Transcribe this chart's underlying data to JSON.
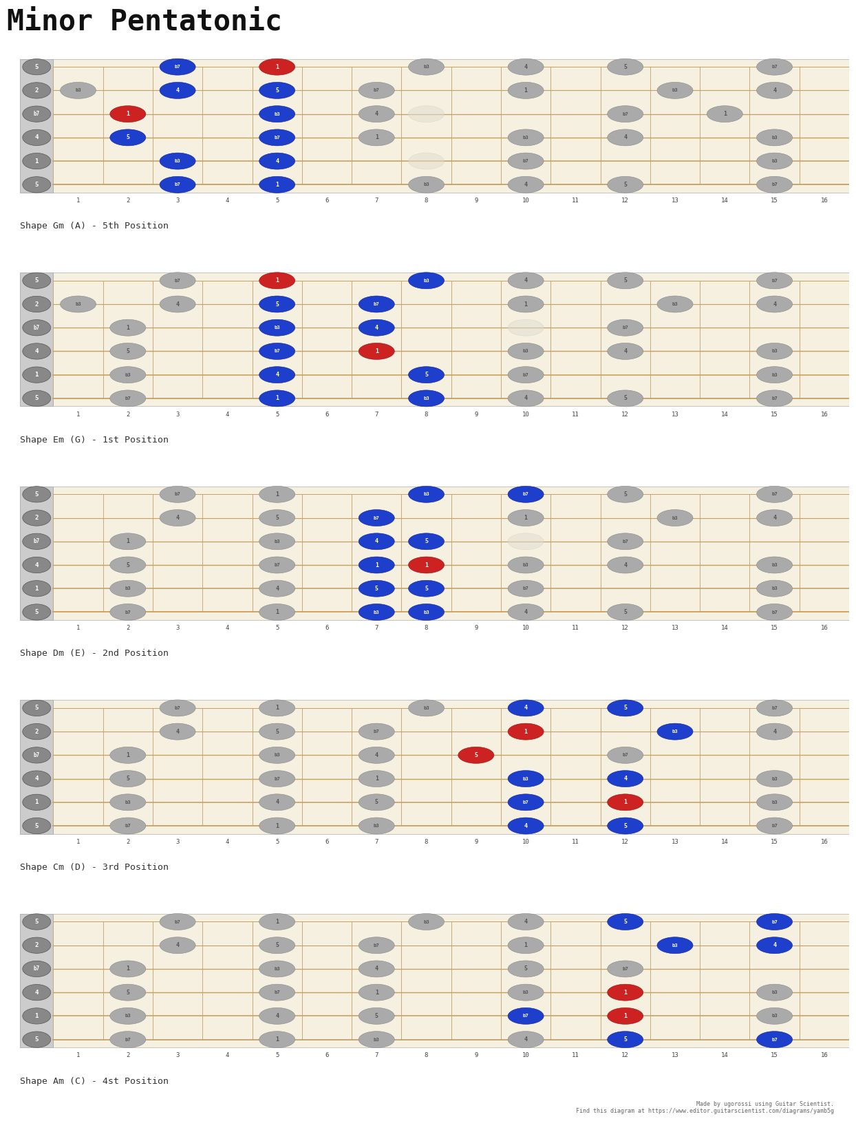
{
  "title": "Minor Pentatonic",
  "page_bg": "#ffffff",
  "fretboard_bg": "#f5f0e0",
  "fret_color": "#c8a878",
  "string_color": "#c8a060",
  "string_label_bg": "#888888",
  "num_frets": 16,
  "num_strings": 6,
  "string_labels": [
    "5",
    "2",
    "b7",
    "4",
    "1",
    "5"
  ],
  "footer": "Made by ugorossi using Guitar Scientist.\nFind this diagram at https://www.editor.guitarscientist.com/diagrams/yamb5g",
  "shapes": [
    {
      "label": "Shape Gm (A) - 5th Position",
      "dots": [
        [
          0,
          3,
          "b7",
          "blue"
        ],
        [
          0,
          5,
          "1",
          "red"
        ],
        [
          0,
          8,
          "b3",
          "gray"
        ],
        [
          0,
          10,
          "4",
          "gray"
        ],
        [
          0,
          12,
          "5",
          "gray"
        ],
        [
          0,
          15,
          "b7",
          "gray"
        ],
        [
          1,
          1,
          "b3",
          "gray"
        ],
        [
          1,
          3,
          "4",
          "blue"
        ],
        [
          1,
          5,
          "5",
          "blue"
        ],
        [
          1,
          7,
          "b7",
          "gray"
        ],
        [
          1,
          10,
          "1",
          "gray"
        ],
        [
          1,
          13,
          "b3",
          "gray"
        ],
        [
          1,
          15,
          "4",
          "gray"
        ],
        [
          2,
          2,
          "1",
          "red"
        ],
        [
          2,
          5,
          "b3",
          "blue"
        ],
        [
          2,
          7,
          "4",
          "gray"
        ],
        [
          2,
          8,
          "5",
          "ghost"
        ],
        [
          2,
          12,
          "b7",
          "gray"
        ],
        [
          2,
          14,
          "1",
          "gray"
        ],
        [
          3,
          2,
          "5",
          "blue"
        ],
        [
          3,
          5,
          "b7",
          "blue"
        ],
        [
          3,
          7,
          "1",
          "gray"
        ],
        [
          3,
          10,
          "b3",
          "gray"
        ],
        [
          3,
          12,
          "4",
          "gray"
        ],
        [
          3,
          15,
          "b3",
          "gray"
        ],
        [
          4,
          3,
          "b3",
          "blue"
        ],
        [
          4,
          5,
          "4",
          "blue"
        ],
        [
          4,
          8,
          "5",
          "ghost"
        ],
        [
          4,
          10,
          "b7",
          "gray"
        ],
        [
          4,
          15,
          "b3",
          "gray"
        ],
        [
          5,
          3,
          "b7",
          "blue"
        ],
        [
          5,
          5,
          "1",
          "blue"
        ],
        [
          5,
          8,
          "b3",
          "gray"
        ],
        [
          5,
          10,
          "4",
          "gray"
        ],
        [
          5,
          12,
          "5",
          "gray"
        ],
        [
          5,
          15,
          "b7",
          "gray"
        ]
      ]
    },
    {
      "label": "Shape Em (G) - 1st Position",
      "dots": [
        [
          0,
          3,
          "b7",
          "gray"
        ],
        [
          0,
          5,
          "1",
          "red"
        ],
        [
          0,
          8,
          "b3",
          "blue"
        ],
        [
          0,
          10,
          "4",
          "gray"
        ],
        [
          0,
          12,
          "5",
          "gray"
        ],
        [
          0,
          15,
          "b7",
          "gray"
        ],
        [
          1,
          1,
          "b3",
          "gray"
        ],
        [
          1,
          3,
          "4",
          "gray"
        ],
        [
          1,
          5,
          "5",
          "blue"
        ],
        [
          1,
          7,
          "b7",
          "blue"
        ],
        [
          1,
          10,
          "1",
          "gray"
        ],
        [
          1,
          13,
          "b3",
          "gray"
        ],
        [
          1,
          15,
          "4",
          "gray"
        ],
        [
          2,
          2,
          "1",
          "gray"
        ],
        [
          2,
          5,
          "b3",
          "blue"
        ],
        [
          2,
          7,
          "4",
          "blue"
        ],
        [
          2,
          10,
          "5",
          "ghost"
        ],
        [
          2,
          12,
          "b7",
          "gray"
        ],
        [
          3,
          2,
          "5",
          "gray"
        ],
        [
          3,
          5,
          "b7",
          "blue"
        ],
        [
          3,
          7,
          "1",
          "red"
        ],
        [
          3,
          10,
          "b3",
          "gray"
        ],
        [
          3,
          12,
          "4",
          "gray"
        ],
        [
          3,
          15,
          "b3",
          "gray"
        ],
        [
          4,
          2,
          "b3",
          "gray"
        ],
        [
          4,
          5,
          "4",
          "blue"
        ],
        [
          4,
          8,
          "5",
          "blue"
        ],
        [
          4,
          10,
          "b7",
          "gray"
        ],
        [
          4,
          15,
          "b3",
          "gray"
        ],
        [
          5,
          2,
          "b7",
          "gray"
        ],
        [
          5,
          5,
          "1",
          "blue"
        ],
        [
          5,
          8,
          "b3",
          "blue"
        ],
        [
          5,
          10,
          "4",
          "gray"
        ],
        [
          5,
          12,
          "5",
          "gray"
        ],
        [
          5,
          15,
          "b7",
          "gray"
        ]
      ]
    },
    {
      "label": "Shape Dm (E) - 2nd Position",
      "dots": [
        [
          0,
          3,
          "b7",
          "gray"
        ],
        [
          0,
          5,
          "1",
          "gray"
        ],
        [
          0,
          8,
          "b3",
          "blue"
        ],
        [
          0,
          10,
          "b7",
          "blue"
        ],
        [
          0,
          12,
          "5",
          "gray"
        ],
        [
          0,
          15,
          "b7",
          "gray"
        ],
        [
          1,
          3,
          "4",
          "gray"
        ],
        [
          1,
          5,
          "5",
          "gray"
        ],
        [
          1,
          7,
          "b7",
          "blue"
        ],
        [
          1,
          10,
          "1",
          "gray"
        ],
        [
          1,
          13,
          "b3",
          "gray"
        ],
        [
          1,
          15,
          "4",
          "gray"
        ],
        [
          2,
          2,
          "1",
          "gray"
        ],
        [
          2,
          5,
          "b3",
          "gray"
        ],
        [
          2,
          7,
          "4",
          "blue"
        ],
        [
          2,
          8,
          "5",
          "blue"
        ],
        [
          2,
          10,
          "5",
          "ghost"
        ],
        [
          2,
          12,
          "b7",
          "gray"
        ],
        [
          3,
          2,
          "5",
          "gray"
        ],
        [
          3,
          5,
          "b7",
          "gray"
        ],
        [
          3,
          7,
          "1",
          "blue"
        ],
        [
          3,
          8,
          "1",
          "red"
        ],
        [
          3,
          10,
          "b3",
          "gray"
        ],
        [
          3,
          12,
          "4",
          "gray"
        ],
        [
          3,
          15,
          "b3",
          "gray"
        ],
        [
          4,
          2,
          "b3",
          "gray"
        ],
        [
          4,
          5,
          "4",
          "gray"
        ],
        [
          4,
          7,
          "5",
          "blue"
        ],
        [
          4,
          8,
          "5",
          "blue"
        ],
        [
          4,
          10,
          "b7",
          "gray"
        ],
        [
          4,
          15,
          "b3",
          "gray"
        ],
        [
          5,
          2,
          "b7",
          "gray"
        ],
        [
          5,
          5,
          "1",
          "gray"
        ],
        [
          5,
          7,
          "b3",
          "blue"
        ],
        [
          5,
          8,
          "b3",
          "blue"
        ],
        [
          5,
          10,
          "4",
          "gray"
        ],
        [
          5,
          12,
          "5",
          "gray"
        ],
        [
          5,
          15,
          "b7",
          "gray"
        ]
      ]
    },
    {
      "label": "Shape Cm (D) - 3rd Position",
      "dots": [
        [
          0,
          3,
          "b7",
          "gray"
        ],
        [
          0,
          5,
          "1",
          "gray"
        ],
        [
          0,
          8,
          "b3",
          "gray"
        ],
        [
          0,
          10,
          "4",
          "blue"
        ],
        [
          0,
          12,
          "5",
          "blue"
        ],
        [
          0,
          15,
          "b7",
          "gray"
        ],
        [
          1,
          3,
          "4",
          "gray"
        ],
        [
          1,
          5,
          "5",
          "gray"
        ],
        [
          1,
          7,
          "b7",
          "gray"
        ],
        [
          1,
          10,
          "1",
          "red"
        ],
        [
          1,
          13,
          "b3",
          "blue"
        ],
        [
          1,
          15,
          "4",
          "gray"
        ],
        [
          2,
          2,
          "1",
          "gray"
        ],
        [
          2,
          5,
          "b3",
          "gray"
        ],
        [
          2,
          7,
          "4",
          "gray"
        ],
        [
          2,
          9,
          "5",
          "red"
        ],
        [
          2,
          12,
          "b7",
          "gray"
        ],
        [
          3,
          2,
          "5",
          "gray"
        ],
        [
          3,
          5,
          "b7",
          "gray"
        ],
        [
          3,
          7,
          "1",
          "gray"
        ],
        [
          3,
          10,
          "b3",
          "blue"
        ],
        [
          3,
          12,
          "4",
          "blue"
        ],
        [
          3,
          15,
          "b3",
          "gray"
        ],
        [
          4,
          2,
          "b3",
          "gray"
        ],
        [
          4,
          5,
          "4",
          "gray"
        ],
        [
          4,
          7,
          "5",
          "gray"
        ],
        [
          4,
          10,
          "b7",
          "blue"
        ],
        [
          4,
          12,
          "1",
          "red"
        ],
        [
          4,
          15,
          "b3",
          "gray"
        ],
        [
          5,
          2,
          "b7",
          "gray"
        ],
        [
          5,
          5,
          "1",
          "gray"
        ],
        [
          5,
          7,
          "b3",
          "gray"
        ],
        [
          5,
          10,
          "4",
          "blue"
        ],
        [
          5,
          12,
          "5",
          "blue"
        ],
        [
          5,
          15,
          "b7",
          "gray"
        ]
      ]
    },
    {
      "label": "Shape Am (C) - 4st Position",
      "dots": [
        [
          0,
          3,
          "b7",
          "gray"
        ],
        [
          0,
          5,
          "1",
          "gray"
        ],
        [
          0,
          8,
          "b3",
          "gray"
        ],
        [
          0,
          10,
          "4",
          "gray"
        ],
        [
          0,
          12,
          "5",
          "blue"
        ],
        [
          0,
          15,
          "b7",
          "blue"
        ],
        [
          1,
          3,
          "4",
          "gray"
        ],
        [
          1,
          5,
          "5",
          "gray"
        ],
        [
          1,
          7,
          "b7",
          "gray"
        ],
        [
          1,
          10,
          "1",
          "gray"
        ],
        [
          1,
          13,
          "b3",
          "blue"
        ],
        [
          1,
          15,
          "4",
          "blue"
        ],
        [
          2,
          2,
          "1",
          "gray"
        ],
        [
          2,
          5,
          "b3",
          "gray"
        ],
        [
          2,
          7,
          "4",
          "gray"
        ],
        [
          2,
          10,
          "5",
          "gray"
        ],
        [
          2,
          12,
          "b7",
          "gray"
        ],
        [
          3,
          2,
          "5",
          "gray"
        ],
        [
          3,
          5,
          "b7",
          "gray"
        ],
        [
          3,
          7,
          "1",
          "gray"
        ],
        [
          3,
          10,
          "b3",
          "gray"
        ],
        [
          3,
          12,
          "1",
          "red"
        ],
        [
          3,
          15,
          "b3",
          "gray"
        ],
        [
          4,
          2,
          "b3",
          "gray"
        ],
        [
          4,
          5,
          "4",
          "gray"
        ],
        [
          4,
          7,
          "5",
          "gray"
        ],
        [
          4,
          10,
          "b7",
          "blue"
        ],
        [
          4,
          12,
          "1",
          "red"
        ],
        [
          4,
          15,
          "b3",
          "gray"
        ],
        [
          5,
          2,
          "b7",
          "gray"
        ],
        [
          5,
          5,
          "1",
          "gray"
        ],
        [
          5,
          7,
          "b3",
          "gray"
        ],
        [
          5,
          10,
          "4",
          "gray"
        ],
        [
          5,
          12,
          "5",
          "blue"
        ],
        [
          5,
          15,
          "b7",
          "blue"
        ]
      ]
    }
  ]
}
